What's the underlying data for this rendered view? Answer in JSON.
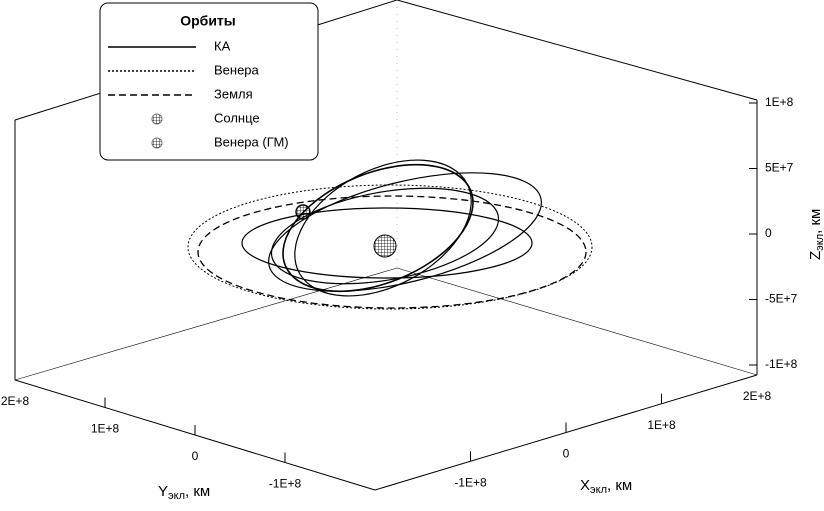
{
  "chart_data": {
    "type": "line3d",
    "legend_title": "Орбиты",
    "series": [
      {
        "name": "КА",
        "style": "solid"
      },
      {
        "name": "Венера",
        "style": "dotted"
      },
      {
        "name": "Земля",
        "style": "dashed"
      },
      {
        "name": "Солнце",
        "style": "marker"
      },
      {
        "name": "Венера (ГМ)",
        "style": "marker"
      }
    ],
    "xlabel": "X",
    "xlabel_sub": "экл",
    "xlabel_unit": ", км",
    "ylabel": "Y",
    "ylabel_sub": "экл",
    "ylabel_unit": ", км",
    "zlabel": "Z",
    "zlabel_sub": "экл",
    "zlabel_unit": ", км",
    "xlim": [
      -200000000,
      200000000
    ],
    "ylim": [
      -200000000,
      200000000
    ],
    "zlim": [
      -100000000,
      100000000
    ],
    "xticks": [
      {
        "value": -100000000,
        "label": "-1E+8"
      },
      0,
      {
        "value": 100000000,
        "label": "1E+8"
      },
      {
        "value": 200000000,
        "label": "2E+8"
      }
    ],
    "yticks": [
      {
        "value": -100000000,
        "label": "-1E+8"
      },
      0,
      {
        "value": 100000000,
        "label": "1E+8"
      },
      {
        "value": 200000000,
        "label": "2E+8"
      }
    ],
    "zticks": [
      {
        "value": -100000000,
        "label": "-1E+8"
      },
      {
        "value": -50000000,
        "label": "-5E+7"
      },
      0,
      {
        "value": 50000000,
        "label": "5E+7"
      },
      {
        "value": 100000000,
        "label": "1E+8"
      }
    ]
  }
}
